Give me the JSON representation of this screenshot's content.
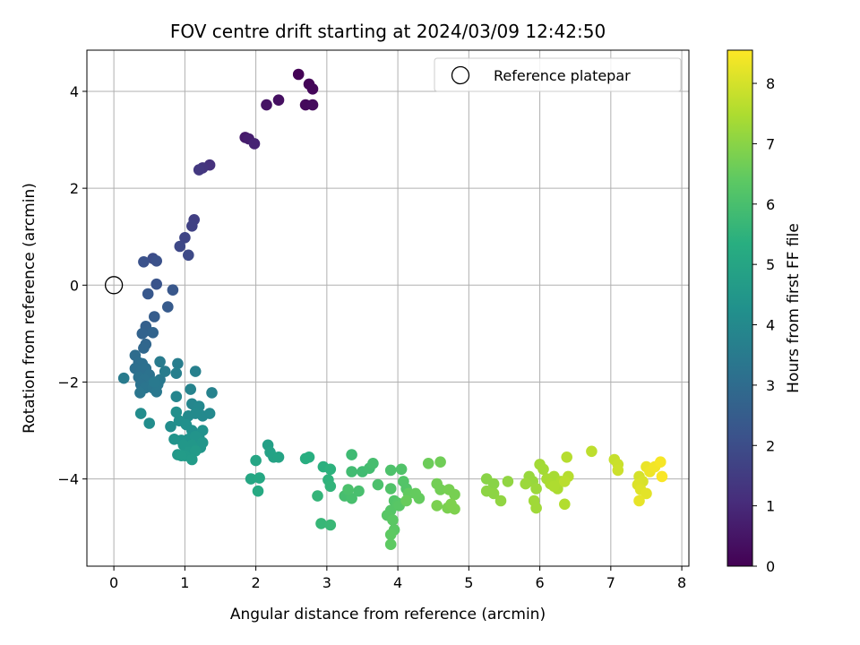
{
  "chart_data": {
    "type": "scatter",
    "title": "FOV centre drift starting at 2024/03/09 12:42:50",
    "xlabel": "Angular distance from reference (arcmin)",
    "ylabel": "Rotation from reference (arcmin)",
    "xlim": [
      -0.38,
      8.1
    ],
    "ylim": [
      -5.8,
      4.85
    ],
    "xticks": [
      0,
      1,
      2,
      3,
      4,
      5,
      6,
      7,
      8
    ],
    "yticks": [
      -4,
      -2,
      0,
      2,
      4
    ],
    "xtick_labels": [
      "0",
      "1",
      "2",
      "3",
      "4",
      "5",
      "6",
      "7",
      "8"
    ],
    "ytick_labels": [
      "−4",
      "−2",
      "0",
      "2",
      "4"
    ],
    "grid": true,
    "colormap": "viridis",
    "colorbar": {
      "label": "Hours from first FF file",
      "range": [
        0,
        8.55
      ],
      "ticks": [
        0,
        1,
        2,
        3,
        4,
        5,
        6,
        7,
        8
      ],
      "tick_labels": [
        "0",
        "1",
        "2",
        "3",
        "4",
        "5",
        "6",
        "7",
        "8"
      ]
    },
    "legend": {
      "placement": "top-right",
      "entries": [
        "Reference platepar"
      ]
    },
    "reference_point": {
      "x": 0,
      "y": 0
    },
    "points": [
      [
        2.6,
        4.35,
        0.05
      ],
      [
        2.75,
        4.15,
        0.1
      ],
      [
        2.8,
        4.05,
        0.15
      ],
      [
        2.7,
        3.72,
        0.2
      ],
      [
        2.8,
        3.72,
        0.25
      ],
      [
        2.32,
        3.82,
        0.35
      ],
      [
        2.15,
        3.72,
        0.45
      ],
      [
        1.85,
        3.05,
        0.6
      ],
      [
        1.9,
        3.02,
        0.7
      ],
      [
        1.98,
        2.92,
        0.85
      ],
      [
        1.35,
        2.48,
        1.2
      ],
      [
        1.25,
        2.42,
        1.3
      ],
      [
        1.2,
        2.38,
        1.4
      ],
      [
        1.13,
        1.35,
        1.6
      ],
      [
        1.1,
        1.22,
        1.65
      ],
      [
        1.0,
        0.98,
        1.75
      ],
      [
        0.93,
        0.8,
        1.85
      ],
      [
        1.05,
        0.62,
        1.9
      ],
      [
        0.55,
        0.55,
        2.0
      ],
      [
        0.6,
        0.5,
        2.1
      ],
      [
        0.42,
        0.48,
        2.15
      ],
      [
        0.6,
        0.02,
        2.2
      ],
      [
        0.83,
        -0.1,
        2.3
      ],
      [
        0.48,
        -0.18,
        2.35
      ],
      [
        0.76,
        -0.45,
        2.45
      ],
      [
        0.57,
        -0.65,
        2.5
      ],
      [
        0.45,
        -0.85,
        2.6
      ],
      [
        0.44,
        -0.95,
        2.65
      ],
      [
        0.4,
        -1.0,
        2.7
      ],
      [
        0.55,
        -0.98,
        2.75
      ],
      [
        0.45,
        -1.22,
        2.8
      ],
      [
        0.42,
        -1.3,
        2.85
      ],
      [
        0.3,
        -1.45,
        3.0
      ],
      [
        0.35,
        -1.6,
        3.05
      ],
      [
        0.4,
        -1.62,
        3.1
      ],
      [
        0.3,
        -1.72,
        3.1
      ],
      [
        0.38,
        -1.78,
        3.15
      ],
      [
        0.45,
        -1.72,
        3.15
      ],
      [
        0.5,
        -1.85,
        3.2
      ],
      [
        0.35,
        -1.9,
        3.2
      ],
      [
        0.43,
        -1.95,
        3.25
      ],
      [
        0.38,
        -2.05,
        3.25
      ],
      [
        0.5,
        -2.08,
        3.3
      ],
      [
        0.44,
        -2.12,
        3.3
      ],
      [
        0.37,
        -2.22,
        3.35
      ],
      [
        0.55,
        -2.12,
        3.35
      ],
      [
        0.6,
        -2.2,
        3.4
      ],
      [
        0.62,
        -2.05,
        3.4
      ],
      [
        0.65,
        -1.95,
        3.45
      ],
      [
        0.57,
        -2.0,
        3.45
      ],
      [
        0.14,
        -1.92,
        3.5
      ],
      [
        0.65,
        -1.58,
        3.5
      ],
      [
        0.72,
        -1.78,
        3.55
      ],
      [
        0.9,
        -1.62,
        3.6
      ],
      [
        0.88,
        -1.82,
        3.65
      ],
      [
        1.15,
        -1.78,
        3.7
      ],
      [
        1.38,
        -2.22,
        3.75
      ],
      [
        1.08,
        -2.15,
        3.8
      ],
      [
        0.88,
        -2.3,
        3.85
      ],
      [
        1.1,
        -2.45,
        3.9
      ],
      [
        1.2,
        -2.5,
        3.95
      ],
      [
        1.25,
        -2.7,
        4.0
      ],
      [
        1.35,
        -2.65,
        4.0
      ],
      [
        1.05,
        -2.7,
        4.05
      ],
      [
        1.15,
        -2.65,
        4.05
      ],
      [
        0.38,
        -2.65,
        4.1
      ],
      [
        0.5,
        -2.85,
        4.15
      ],
      [
        0.8,
        -2.92,
        4.15
      ],
      [
        0.88,
        -2.62,
        4.2
      ],
      [
        0.92,
        -2.8,
        4.2
      ],
      [
        1.02,
        -2.88,
        4.25
      ],
      [
        1.1,
        -3.0,
        4.25
      ],
      [
        1.25,
        -3.0,
        4.3
      ],
      [
        1.2,
        -3.15,
        4.3
      ],
      [
        1.05,
        -3.18,
        4.35
      ],
      [
        0.95,
        -3.2,
        4.35
      ],
      [
        0.85,
        -3.18,
        4.4
      ],
      [
        1.15,
        -3.12,
        4.4
      ],
      [
        1.25,
        -3.25,
        4.45
      ],
      [
        1.22,
        -3.35,
        4.45
      ],
      [
        1.1,
        -3.3,
        4.5
      ],
      [
        0.98,
        -3.3,
        4.5
      ],
      [
        0.9,
        -3.5,
        4.55
      ],
      [
        1.05,
        -3.45,
        4.55
      ],
      [
        1.15,
        -3.42,
        4.6
      ],
      [
        1.0,
        -3.52,
        4.6
      ],
      [
        1.1,
        -3.6,
        4.65
      ],
      [
        0.95,
        -3.52,
        4.65
      ],
      [
        2.17,
        -3.3,
        4.8
      ],
      [
        2.2,
        -3.45,
        4.85
      ],
      [
        2.25,
        -3.55,
        4.9
      ],
      [
        2.32,
        -3.55,
        4.95
      ],
      [
        2.0,
        -3.62,
        5.0
      ],
      [
        1.93,
        -4.0,
        5.05
      ],
      [
        2.05,
        -3.98,
        5.1
      ],
      [
        2.03,
        -4.25,
        5.15
      ],
      [
        2.7,
        -3.58,
        5.3
      ],
      [
        2.75,
        -3.55,
        5.35
      ],
      [
        2.95,
        -3.75,
        5.4
      ],
      [
        3.05,
        -3.8,
        5.45
      ],
      [
        3.02,
        -4.02,
        5.5
      ],
      [
        3.05,
        -4.15,
        5.55
      ],
      [
        2.87,
        -4.35,
        5.6
      ],
      [
        2.92,
        -4.92,
        5.65
      ],
      [
        3.05,
        -4.95,
        5.7
      ],
      [
        3.35,
        -3.5,
        5.8
      ],
      [
        3.35,
        -3.85,
        5.85
      ],
      [
        3.5,
        -3.85,
        5.85
      ],
      [
        3.6,
        -3.78,
        5.9
      ],
      [
        3.65,
        -3.68,
        5.95
      ],
      [
        3.25,
        -4.35,
        5.95
      ],
      [
        3.35,
        -4.4,
        6.0
      ],
      [
        3.45,
        -4.25,
        6.0
      ],
      [
        3.3,
        -4.22,
        6.05
      ],
      [
        3.72,
        -4.12,
        6.05
      ],
      [
        3.9,
        -3.82,
        6.1
      ],
      [
        4.05,
        -3.8,
        6.15
      ],
      [
        3.9,
        -4.2,
        6.15
      ],
      [
        4.08,
        -4.05,
        6.2
      ],
      [
        4.12,
        -4.2,
        6.2
      ],
      [
        3.95,
        -4.45,
        6.2
      ],
      [
        4.0,
        -4.5,
        6.25
      ],
      [
        3.9,
        -4.65,
        6.25
      ],
      [
        4.02,
        -4.55,
        6.3
      ],
      [
        3.85,
        -4.75,
        6.3
      ],
      [
        3.93,
        -4.85,
        6.35
      ],
      [
        3.95,
        -5.05,
        6.35
      ],
      [
        3.9,
        -5.15,
        6.4
      ],
      [
        3.9,
        -5.35,
        6.4
      ],
      [
        4.15,
        -4.3,
        6.45
      ],
      [
        4.25,
        -4.3,
        6.5
      ],
      [
        4.3,
        -4.4,
        6.5
      ],
      [
        4.12,
        -4.45,
        6.55
      ],
      [
        4.43,
        -3.68,
        6.6
      ],
      [
        4.6,
        -3.65,
        6.65
      ],
      [
        4.55,
        -4.1,
        6.7
      ],
      [
        4.6,
        -4.22,
        6.7
      ],
      [
        4.72,
        -4.22,
        6.75
      ],
      [
        4.8,
        -4.32,
        6.75
      ],
      [
        4.55,
        -4.55,
        6.8
      ],
      [
        4.7,
        -4.6,
        6.8
      ],
      [
        4.75,
        -4.52,
        6.85
      ],
      [
        4.8,
        -4.62,
        6.85
      ],
      [
        5.25,
        -4.0,
        7.0
      ],
      [
        5.35,
        -4.1,
        7.0
      ],
      [
        5.25,
        -4.25,
        7.05
      ],
      [
        5.35,
        -4.3,
        7.05
      ],
      [
        5.45,
        -4.45,
        7.1
      ],
      [
        5.55,
        -4.05,
        7.1
      ],
      [
        5.85,
        -3.95,
        7.2
      ],
      [
        5.9,
        -4.05,
        7.2
      ],
      [
        5.8,
        -4.1,
        7.25
      ],
      [
        5.95,
        -4.2,
        7.25
      ],
      [
        5.92,
        -4.45,
        7.3
      ],
      [
        5.95,
        -4.6,
        7.3
      ],
      [
        6.0,
        -3.7,
        7.35
      ],
      [
        6.05,
        -3.8,
        7.35
      ],
      [
        6.1,
        -4.0,
        7.4
      ],
      [
        6.2,
        -3.95,
        7.4
      ],
      [
        6.15,
        -4.1,
        7.45
      ],
      [
        6.25,
        -4.2,
        7.45
      ],
      [
        6.3,
        -4.05,
        7.5
      ],
      [
        6.2,
        -4.15,
        7.5
      ],
      [
        6.35,
        -4.52,
        7.55
      ],
      [
        6.38,
        -3.55,
        7.6
      ],
      [
        6.4,
        -3.95,
        7.6
      ],
      [
        6.35,
        -4.05,
        7.65
      ],
      [
        6.73,
        -3.43,
        7.7
      ],
      [
        7.05,
        -3.6,
        7.8
      ],
      [
        7.1,
        -3.7,
        7.85
      ],
      [
        7.1,
        -3.82,
        7.9
      ],
      [
        7.4,
        -3.95,
        8.0
      ],
      [
        7.45,
        -4.05,
        8.05
      ],
      [
        7.38,
        -4.12,
        8.1
      ],
      [
        7.42,
        -4.22,
        8.15
      ],
      [
        7.5,
        -4.3,
        8.2
      ],
      [
        7.4,
        -4.45,
        8.25
      ],
      [
        7.5,
        -3.75,
        8.3
      ],
      [
        7.55,
        -3.85,
        8.35
      ],
      [
        7.62,
        -3.75,
        8.4
      ],
      [
        7.7,
        -3.65,
        8.45
      ],
      [
        7.72,
        -3.95,
        8.5
      ]
    ]
  }
}
